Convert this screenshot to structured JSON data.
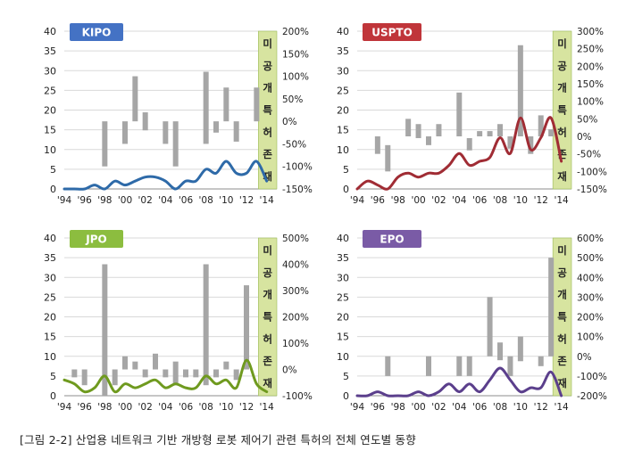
{
  "caption": "[그림 2-2] 산업용 네트워크 기반 개방형 로봇 제어기 관련 특허의 전체 연도별 동향",
  "unpublished_label": [
    "미",
    "공",
    "개",
    "특",
    "허",
    "존",
    "재"
  ],
  "colors": {
    "grid": "#d9d9d9",
    "bar": "#a6a6a6",
    "shade": "#d7e4a0",
    "shade_border": "#9bbb59",
    "axis_text": "#222222"
  },
  "chart_data": [
    {
      "type": "line+range-bar",
      "office": "KIPO",
      "badge_color": "#4472c4",
      "line_color": "#2e6aa8",
      "x_tick_labels": [
        "'94",
        "'96",
        "'98",
        "'00",
        "'02",
        "'04",
        "'06",
        "'08",
        "'10",
        "'12",
        "'14"
      ],
      "years": [
        1994,
        1995,
        1996,
        1997,
        1998,
        1999,
        2000,
        2001,
        2002,
        2003,
        2004,
        2005,
        2006,
        2007,
        2008,
        2009,
        2010,
        2011,
        2012,
        2013,
        2014
      ],
      "counts": [
        0,
        0,
        0,
        1,
        0,
        2,
        1,
        2,
        3,
        3,
        2,
        0,
        2,
        2,
        5,
        4,
        7,
        4,
        4,
        7,
        2
      ],
      "growth_ranges": [
        [
          1998,
          -100,
          0
        ],
        [
          2000,
          -50,
          0
        ],
        [
          2001,
          0,
          100
        ],
        [
          2002,
          -20,
          20
        ],
        [
          2004,
          -50,
          0
        ],
        [
          2005,
          -100,
          0
        ],
        [
          2008,
          -50,
          110
        ],
        [
          2009,
          -25,
          0
        ],
        [
          2010,
          0,
          75
        ],
        [
          2011,
          -45,
          0
        ],
        [
          2013,
          0,
          75
        ]
      ],
      "ylim_left": [
        0,
        40
      ],
      "left_ticks": [
        "0",
        "5",
        "10",
        "15",
        "20",
        "25",
        "30",
        "35",
        "40"
      ],
      "ylim_right": [
        -150,
        200
      ],
      "right_ticks": [
        "-150%",
        "-100%",
        "-50%",
        "0%",
        "50%",
        "100%",
        "150%",
        "200%"
      ]
    },
    {
      "type": "line+range-bar",
      "office": "USPTO",
      "badge_color": "#c0353a",
      "line_color": "#a02c34",
      "x_tick_labels": [
        "'94",
        "'96",
        "'98",
        "'00",
        "'02",
        "'04",
        "'06",
        "'08",
        "'10",
        "'12",
        "'14"
      ],
      "years": [
        1994,
        1995,
        1996,
        1997,
        1998,
        1999,
        2000,
        2001,
        2002,
        2003,
        2004,
        2005,
        2006,
        2007,
        2008,
        2009,
        2010,
        2011,
        2012,
        2013,
        2014
      ],
      "counts": [
        0,
        2,
        1,
        0,
        3,
        4,
        3,
        4,
        4,
        6,
        9,
        6,
        7,
        8,
        13,
        9,
        18,
        10,
        13,
        18,
        7
      ],
      "growth_ranges": [
        [
          1996,
          -50,
          0
        ],
        [
          1997,
          -100,
          -25
        ],
        [
          1999,
          0,
          50
        ],
        [
          2000,
          -5,
          35
        ],
        [
          2001,
          -25,
          0
        ],
        [
          2002,
          0,
          35
        ],
        [
          2004,
          0,
          125
        ],
        [
          2005,
          -40,
          -5
        ],
        [
          2006,
          0,
          15
        ],
        [
          2007,
          0,
          15
        ],
        [
          2008,
          0,
          35
        ],
        [
          2009,
          -35,
          0
        ],
        [
          2010,
          0,
          260
        ],
        [
          2011,
          -50,
          0
        ],
        [
          2012,
          0,
          60
        ],
        [
          2013,
          0,
          20
        ]
      ],
      "ylim_left": [
        0,
        40
      ],
      "left_ticks": [
        "0",
        "5",
        "10",
        "15",
        "20",
        "25",
        "30",
        "35",
        "40"
      ],
      "ylim_right": [
        -150,
        300
      ],
      "right_ticks": [
        "-150%",
        "-100%",
        "-50%",
        "0%",
        "50%",
        "100%",
        "150%",
        "200%",
        "250%",
        "300%"
      ]
    },
    {
      "type": "line+range-bar",
      "office": "JPO",
      "badge_color": "#8cbd3f",
      "line_color": "#6f9a1f",
      "x_tick_labels": [
        "'94",
        "'96",
        "'98",
        "'00",
        "'02",
        "'04",
        "'06",
        "'08",
        "'10",
        "'12",
        "'14"
      ],
      "years": [
        1994,
        1995,
        1996,
        1997,
        1998,
        1999,
        2000,
        2001,
        2002,
        2003,
        2004,
        2005,
        2006,
        2007,
        2008,
        2009,
        2010,
        2011,
        2012,
        2013,
        2014
      ],
      "counts": [
        4,
        3,
        1,
        2,
        5,
        1,
        3,
        2,
        3,
        4,
        2,
        3,
        2,
        2,
        5,
        3,
        4,
        2,
        9,
        3,
        1
      ],
      "growth_ranges": [
        [
          1995,
          -30,
          0
        ],
        [
          1996,
          -60,
          0
        ],
        [
          1998,
          -100,
          400
        ],
        [
          1999,
          -60,
          0
        ],
        [
          2000,
          0,
          50
        ],
        [
          2001,
          0,
          30
        ],
        [
          2002,
          -30,
          0
        ],
        [
          2003,
          0,
          60
        ],
        [
          2004,
          -30,
          0
        ],
        [
          2005,
          -60,
          30
        ],
        [
          2006,
          -30,
          0
        ],
        [
          2007,
          -30,
          0
        ],
        [
          2008,
          -60,
          400
        ],
        [
          2009,
          -30,
          0
        ],
        [
          2010,
          0,
          30
        ],
        [
          2011,
          -40,
          0
        ],
        [
          2012,
          0,
          320
        ]
      ],
      "ylim_left": [
        0,
        40
      ],
      "left_ticks": [
        "0",
        "5",
        "10",
        "15",
        "20",
        "25",
        "30",
        "35",
        "40"
      ],
      "ylim_right": [
        -100,
        500
      ],
      "right_ticks": [
        "-100%",
        "0%",
        "100%",
        "200%",
        "300%",
        "400%",
        "500%"
      ]
    },
    {
      "type": "line+range-bar",
      "office": "EPO",
      "badge_color": "#7a5ba6",
      "line_color": "#5b3f8c",
      "x_tick_labels": [
        "'94",
        "'96",
        "'98",
        "'00",
        "'02",
        "'04",
        "'06",
        "'08",
        "'10",
        "'12",
        "'14"
      ],
      "years": [
        1994,
        1995,
        1996,
        1997,
        1998,
        1999,
        2000,
        2001,
        2002,
        2003,
        2004,
        2005,
        2006,
        2007,
        2008,
        2009,
        2010,
        2011,
        2012,
        2013,
        2014
      ],
      "counts": [
        0,
        0,
        1,
        0,
        0,
        0,
        1,
        0,
        1,
        3,
        1,
        3,
        1,
        4,
        7,
        4,
        1,
        2,
        2,
        6,
        0
      ],
      "growth_ranges": [
        [
          1997,
          -100,
          0
        ],
        [
          2001,
          -100,
          0
        ],
        [
          2004,
          -100,
          0
        ],
        [
          2005,
          -100,
          0
        ],
        [
          2007,
          0,
          300
        ],
        [
          2008,
          -20,
          70
        ],
        [
          2009,
          -100,
          0
        ],
        [
          2010,
          -25,
          100
        ],
        [
          2012,
          -50,
          0
        ],
        [
          2013,
          0,
          500
        ]
      ],
      "ylim_left": [
        0,
        40
      ],
      "left_ticks": [
        "0",
        "5",
        "10",
        "15",
        "20",
        "25",
        "30",
        "35",
        "40"
      ],
      "ylim_right": [
        -200,
        600
      ],
      "right_ticks": [
        "-200%",
        "-100%",
        "0%",
        "100%",
        "200%",
        "300%",
        "400%",
        "500%",
        "600%"
      ]
    }
  ]
}
